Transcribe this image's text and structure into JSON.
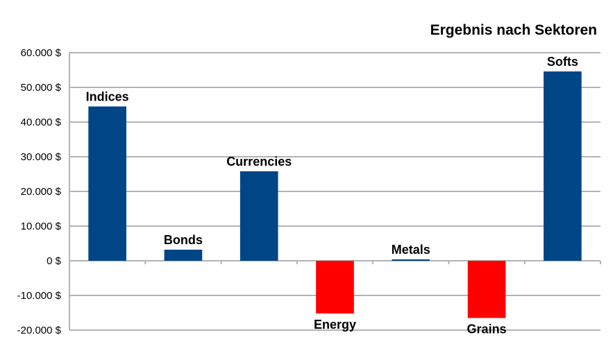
{
  "chart_data": {
    "type": "bar",
    "title": "Ergebnis nach Sektoren",
    "xlabel": "",
    "ylabel": "",
    "categories": [
      "Indices",
      "Bonds",
      "Currencies",
      "Energy",
      "Metals",
      "Grains",
      "Softs"
    ],
    "values": [
      44500,
      3200,
      25800,
      -15200,
      400,
      -16500,
      54600
    ],
    "ylim": [
      -20000,
      60000
    ],
    "yticks": [
      60000,
      50000,
      40000,
      30000,
      20000,
      10000,
      0,
      -10000,
      -20000
    ],
    "ytick_labels": [
      "60.000 $",
      "50.000 $",
      "40.000 $",
      "30.000 $",
      "20.000 $",
      "10.000 $",
      "0 $",
      "-10.000 $",
      "-20.000 $"
    ],
    "grid": true,
    "legend": "none",
    "colors": {
      "positive": "#004586",
      "negative": "#ff0000",
      "grid": "#b3b3b3",
      "axis": "#b3b3b3"
    }
  }
}
